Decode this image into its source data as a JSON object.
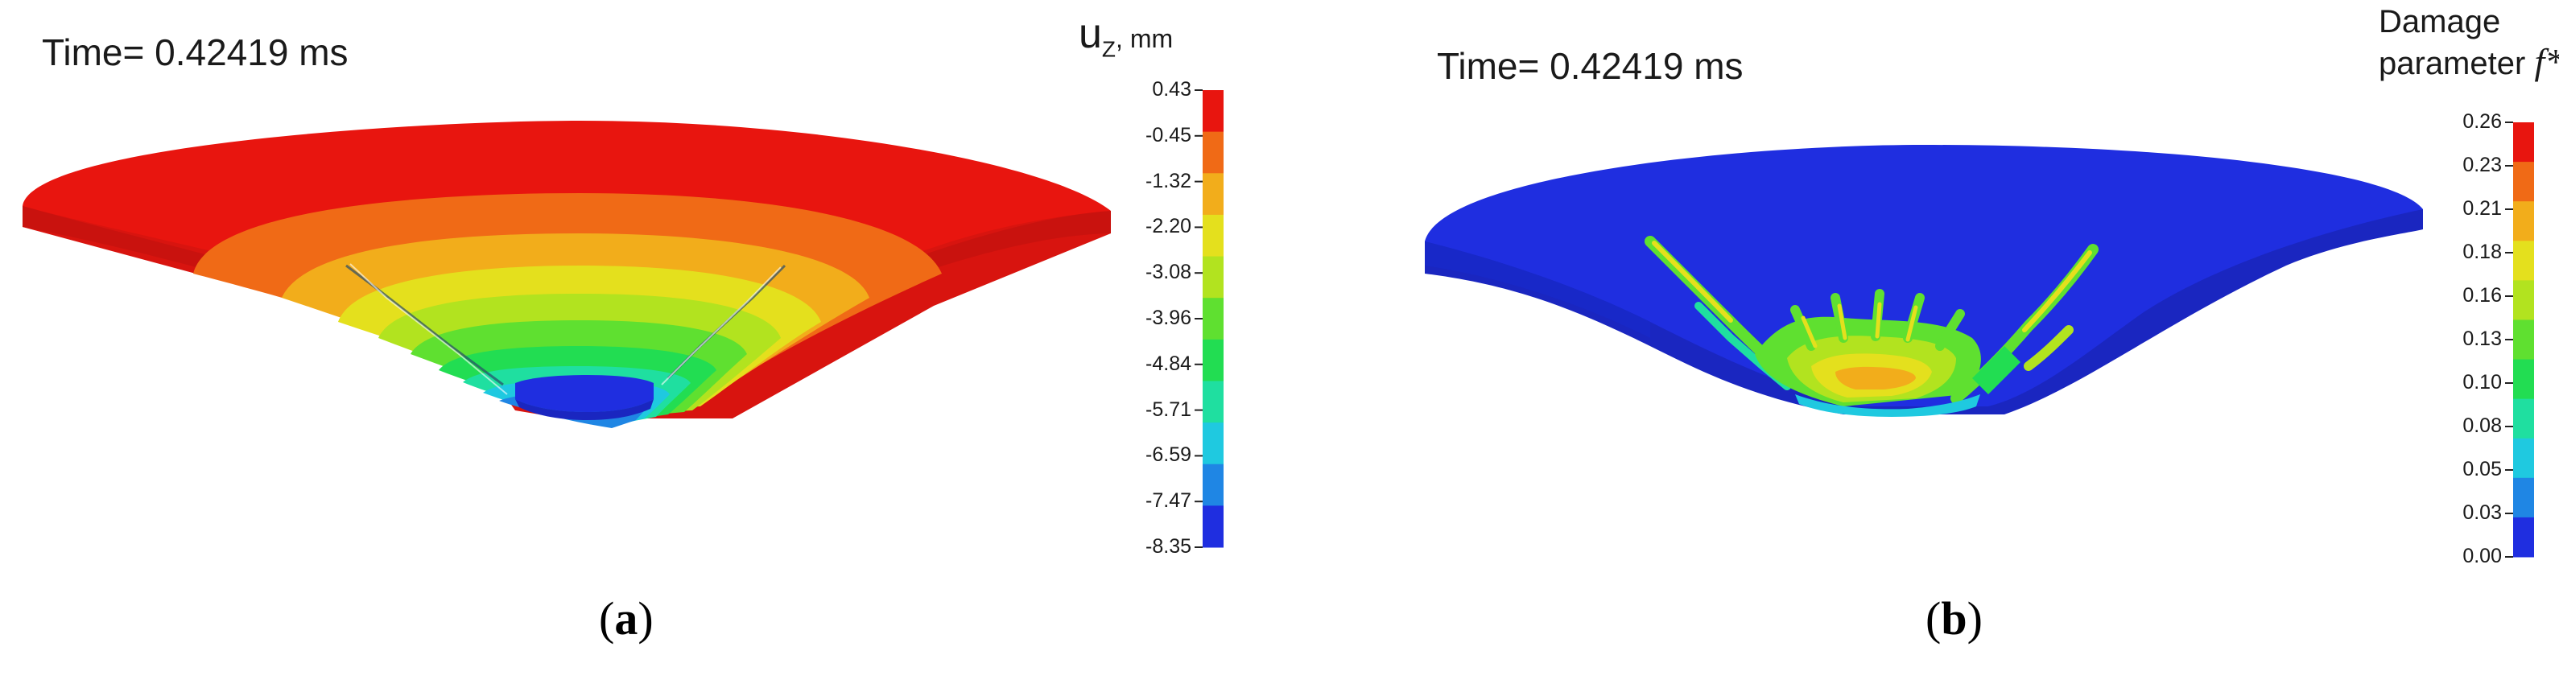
{
  "panel_a": {
    "time_label": "Time= 0.42419 ms",
    "legend": {
      "symbol": "u",
      "subscript": "Z",
      "unit": ", mm",
      "ticks": [
        "0.43",
        "-0.45",
        "-1.32",
        "-2.20",
        "-3.08",
        "-3.96",
        "-4.84",
        "-5.71",
        "-6.59",
        "-7.47",
        "-8.35"
      ],
      "colors": [
        "#e8150f",
        "#f06a16",
        "#f2ad1b",
        "#e4e01d",
        "#b2e31f",
        "#5fe030",
        "#22dd52",
        "#1fdfa0",
        "#1fc9e0",
        "#1f86e4",
        "#1f2ee0"
      ]
    },
    "caption_letter": "a",
    "caption_open": "(",
    "caption_close": ")"
  },
  "panel_b": {
    "time_label": "Time= 0.42419 ms",
    "legend": {
      "title_line1": "Damage",
      "title_line2": "parameter",
      "symbol": "f*",
      "ticks": [
        "0.26",
        "0.23",
        "0.21",
        "0.18",
        "0.16",
        "0.13",
        "0.10",
        "0.08",
        "0.05",
        "0.03",
        "0.00"
      ],
      "colors": [
        "#e8150f",
        "#f06a16",
        "#f2ad1b",
        "#e4e01d",
        "#b2e31f",
        "#5fe030",
        "#22dd52",
        "#1fdfa0",
        "#1fc9e0",
        "#1f86e4",
        "#1f2ee0"
      ]
    },
    "caption_letter": "b",
    "caption_open": "(",
    "caption_close": ")"
  }
}
